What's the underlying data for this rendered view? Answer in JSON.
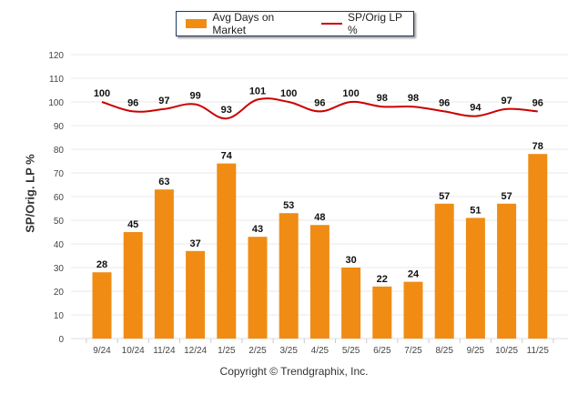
{
  "chart_data": {
    "type": "bar",
    "title": "",
    "xlabel": "",
    "ylabel": "SP/Orig. LP %",
    "ylim": [
      0,
      120
    ],
    "yticks": [
      0,
      10,
      20,
      30,
      40,
      50,
      60,
      70,
      80,
      90,
      100,
      110,
      120
    ],
    "grid": true,
    "legend_position": "top-center",
    "categories": [
      "9/24",
      "10/24",
      "11/24",
      "12/24",
      "1/25",
      "2/25",
      "3/25",
      "4/25",
      "5/25",
      "6/25",
      "7/25",
      "8/25",
      "9/25",
      "10/25",
      "11/25"
    ],
    "series": [
      {
        "name": "Avg Days on Market",
        "type": "bar",
        "color": "#f08c14",
        "values": [
          28,
          45,
          63,
          37,
          74,
          43,
          53,
          48,
          30,
          22,
          24,
          57,
          51,
          57,
          78
        ]
      },
      {
        "name": "SP/Orig LP %",
        "type": "line",
        "color": "#cc0000",
        "values": [
          100,
          96,
          97,
          99,
          93,
          101,
          100,
          96,
          100,
          98,
          98,
          96,
          94,
          97,
          96
        ]
      }
    ],
    "footer": "Copyright © Trendgraphix, Inc."
  }
}
